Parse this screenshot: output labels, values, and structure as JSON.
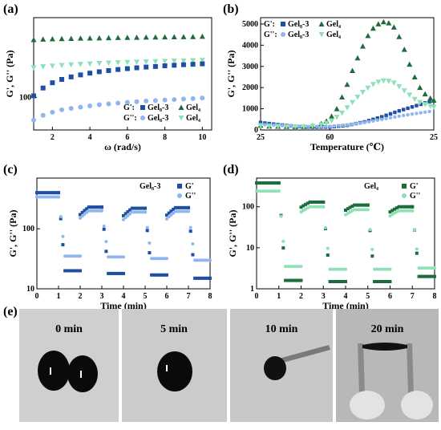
{
  "panel_labels": {
    "a": "(a)",
    "b": "(b)",
    "c": "(c)",
    "d": "(d)",
    "e": "(e)"
  },
  "colors": {
    "dark_blue": "#1f4fa3",
    "light_blue": "#8fb6ee",
    "dark_green": "#1e6b3c",
    "light_green": "#8ee0b6"
  },
  "chart_data": [
    {
      "id": "a",
      "type": "scatter",
      "scale_y": "log",
      "xlabel": "ω (rad/s)",
      "ylabel": "G', G'' (Pa)",
      "xlim": [
        1,
        10.5
      ],
      "ylim_log": [
        35,
        1300
      ],
      "x_ticks": [
        "2",
        "4",
        "6",
        "8",
        "10"
      ],
      "y_ticks": [
        "100"
      ],
      "legend_rows": [
        {
          "label": "G':",
          "items": [
            {
              "marker": "square",
              "color": "#1f4fa3",
              "name": "Gel₈-3"
            },
            {
              "marker": "triangle",
              "color": "#1e6b3c",
              "name": "Gel₄"
            }
          ]
        },
        {
          "label": "G'':",
          "items": [
            {
              "marker": "circle",
              "color": "#8fb6ee",
              "name": "Gel₈-3"
            },
            {
              "marker": "triangle-down",
              "color": "#8ee0b6",
              "name": "Gel₄"
            }
          ]
        }
      ],
      "series": [
        {
          "marker": "triangle",
          "color": "#1e6b3c",
          "x": [
            1,
            1.5,
            2,
            2.5,
            3,
            3.5,
            4,
            4.5,
            5,
            5.5,
            6,
            6.5,
            7,
            7.5,
            8,
            8.5,
            9,
            9.5,
            10
          ],
          "y": [
            640,
            650,
            655,
            660,
            665,
            670,
            672,
            676,
            680,
            683,
            686,
            689,
            692,
            694,
            697,
            700,
            702,
            705,
            710
          ]
        },
        {
          "marker": "triangle-down",
          "color": "#8ee0b6",
          "x": [
            1,
            1.5,
            2,
            2.5,
            3,
            3.5,
            4,
            4.5,
            5,
            5.5,
            6,
            6.5,
            7,
            7.5,
            8,
            8.5,
            9,
            9.5,
            10
          ],
          "y": [
            260,
            268,
            274,
            280,
            285,
            290,
            294,
            298,
            302,
            305,
            308,
            311,
            314,
            316,
            319,
            321,
            323,
            326,
            330
          ]
        },
        {
          "marker": "square",
          "color": "#1f4fa3",
          "x": [
            1,
            1.5,
            2,
            2.5,
            3,
            3.5,
            4,
            4.5,
            5,
            5.5,
            6,
            6.5,
            7,
            7.5,
            8,
            8.5,
            9,
            9.5,
            10
          ],
          "y": [
            105,
            135,
            160,
            178,
            193,
            206,
            218,
            228,
            237,
            245,
            252,
            259,
            265,
            270,
            276,
            281,
            286,
            290,
            294
          ]
        },
        {
          "marker": "circle",
          "color": "#8fb6ee",
          "x": [
            1,
            1.5,
            2,
            2.5,
            3,
            3.5,
            4,
            4.5,
            5,
            5.5,
            6,
            6.5,
            7,
            7.5,
            8,
            8.5,
            9,
            9.5,
            10
          ],
          "y": [
            48,
            56,
            62,
            67,
            70,
            73,
            76,
            79,
            81,
            83,
            85,
            87,
            89,
            90,
            92,
            93,
            95,
            96,
            98
          ]
        }
      ]
    },
    {
      "id": "b",
      "type": "scatter",
      "xlabel": "Temperature (℃)",
      "ylabel": "G', G'' (Pa)",
      "xlim": [
        0,
        100
      ],
      "ylim": [
        0,
        5300
      ],
      "x_tick_vals": [
        0,
        40,
        100
      ],
      "x_ticks": [
        "25",
        "60",
        "25"
      ],
      "y_tick_vals": [
        0,
        1000,
        2000,
        3000,
        4000,
        5000
      ],
      "y_ticks": [
        "0",
        "1000",
        "2000",
        "3000",
        "4000",
        "5000"
      ],
      "legend_rows": [
        {
          "label": "G':",
          "items": [
            {
              "marker": "square",
              "color": "#1f4fa3",
              "name": "Gel₈-3"
            },
            {
              "marker": "triangle",
              "color": "#1e6b3c",
              "name": "Gel₄"
            }
          ]
        },
        {
          "label": "G'':",
          "items": [
            {
              "marker": "circle",
              "color": "#8fb6ee",
              "name": "Gel₈-3"
            },
            {
              "marker": "triangle-down",
              "color": "#8ee0b6",
              "name": "Gel₄"
            }
          ]
        }
      ],
      "series": [
        {
          "marker": "square",
          "color": "#1f4fa3",
          "style": "dense",
          "x": [
            0,
            10,
            20,
            30,
            40,
            50,
            60,
            70,
            80,
            90,
            100
          ],
          "y": [
            350,
            250,
            170,
            130,
            140,
            220,
            380,
            620,
            900,
            1150,
            1400
          ]
        },
        {
          "marker": "circle",
          "color": "#8fb6ee",
          "style": "dense",
          "x": [
            0,
            10,
            20,
            30,
            40,
            50,
            60,
            70,
            80,
            90,
            100
          ],
          "y": [
            260,
            220,
            180,
            160,
            170,
            240,
            350,
            500,
            650,
            780,
            900
          ]
        },
        {
          "marker": "triangle",
          "color": "#1e6b3c",
          "x": [
            0,
            5,
            10,
            15,
            20,
            25,
            30,
            35,
            38,
            41,
            44,
            47,
            50,
            53,
            56,
            59,
            62,
            65,
            68,
            71,
            74,
            77,
            80,
            83,
            86,
            89,
            92,
            95,
            98,
            100
          ],
          "y": [
            220,
            180,
            170,
            160,
            150,
            160,
            200,
            300,
            420,
            650,
            1000,
            1550,
            2150,
            2800,
            3400,
            3950,
            4450,
            4800,
            5000,
            5100,
            5050,
            4850,
            4400,
            3800,
            3100,
            2500,
            2000,
            1700,
            1500,
            1400
          ]
        },
        {
          "marker": "triangle-down",
          "color": "#8ee0b6",
          "x": [
            0,
            5,
            10,
            15,
            20,
            25,
            30,
            35,
            38,
            41,
            44,
            47,
            50,
            53,
            56,
            59,
            62,
            65,
            68,
            71,
            74,
            77,
            80,
            83,
            86,
            89,
            92,
            95,
            98,
            100
          ],
          "y": [
            200,
            170,
            160,
            150,
            145,
            150,
            180,
            240,
            320,
            430,
            600,
            800,
            1050,
            1300,
            1550,
            1780,
            1980,
            2150,
            2260,
            2320,
            2300,
            2220,
            2050,
            1850,
            1650,
            1450,
            1300,
            1200,
            1120,
            1080
          ]
        }
      ]
    },
    {
      "id": "c",
      "type": "scatter",
      "scale_y": "log",
      "xlabel": "Time (min)",
      "ylabel": "G', G'' (Pa)",
      "xlim": [
        0,
        8
      ],
      "ylim_log": [
        10,
        700
      ],
      "x_tick_vals": [
        0,
        1,
        2,
        3,
        4,
        5,
        6,
        7,
        8
      ],
      "x_ticks": [
        "0",
        "1",
        "2",
        "3",
        "4",
        "5",
        "6",
        "7",
        "8"
      ],
      "y_tick_vals": [
        10,
        100
      ],
      "y_ticks": [
        "10",
        "100"
      ],
      "legend_title": "Gel₈-3",
      "legend_items": [
        {
          "marker": "square",
          "color": "#1f4fa3",
          "name": "G'"
        },
        {
          "marker": "circle",
          "color": "#8fb6ee",
          "name": "G''"
        }
      ],
      "cycles": {
        "high_start": [
          0,
          2,
          4,
          6
        ],
        "low_start": [
          1,
          3,
          5,
          7
        ],
        "Gp_high": [
          400,
          230,
          220,
          225
        ],
        "Gpp_high": [
          340,
          200,
          190,
          195
        ],
        "Gp_low": [
          20,
          18,
          17,
          15
        ],
        "Gpp_low": [
          35,
          34,
          32,
          30
        ]
      }
    },
    {
      "id": "d",
      "type": "scatter",
      "scale_y": "log",
      "xlabel": "Time (min)",
      "ylabel": "G', G'' (Pa)",
      "xlim": [
        0,
        8
      ],
      "ylim_log": [
        1,
        500
      ],
      "x_tick_vals": [
        0,
        1,
        2,
        3,
        4,
        5,
        6,
        7,
        8
      ],
      "x_ticks": [
        "0",
        "1",
        "2",
        "3",
        "4",
        "5",
        "6",
        "7",
        "8"
      ],
      "y_tick_vals": [
        1,
        10,
        100
      ],
      "y_ticks": [
        "1",
        "10",
        "100"
      ],
      "legend_title": "Gel₄",
      "legend_items": [
        {
          "marker": "square",
          "color": "#1e6b3c",
          "name": "G'"
        },
        {
          "marker": "circle",
          "color": "#8ee0b6",
          "name": "G''"
        }
      ],
      "cycles": {
        "high_start": [
          0,
          2,
          4,
          6
        ],
        "low_start": [
          1,
          3,
          5,
          7
        ],
        "Gp_high": [
          380,
          130,
          110,
          100
        ],
        "Gpp_high": [
          240,
          100,
          85,
          80
        ],
        "Gp_low": [
          1.6,
          1.5,
          1.5,
          2.0
        ],
        "Gpp_low": [
          3.5,
          3.0,
          3.0,
          3.2
        ]
      }
    }
  ],
  "photos": [
    {
      "caption": "0 min",
      "bg": "#cfcfcf"
    },
    {
      "caption": "5 min",
      "bg": "#cbcbcb"
    },
    {
      "caption": "10 min",
      "bg": "#c8c8c8"
    },
    {
      "caption": "20 min",
      "bg": "#b8b8b8"
    }
  ]
}
